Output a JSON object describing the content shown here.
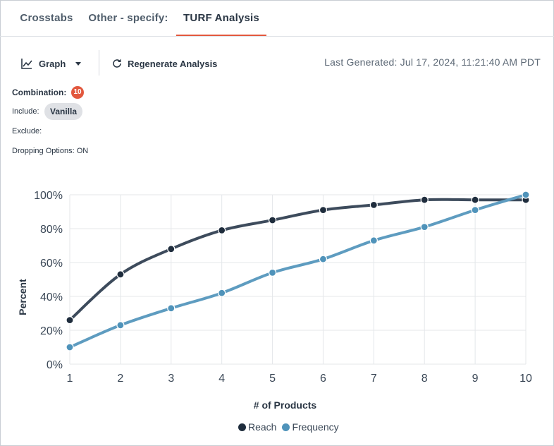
{
  "tabs": [
    {
      "label": "Crosstabs",
      "active": false
    },
    {
      "label": "Other - specify:",
      "active": false
    },
    {
      "label": "TURF Analysis",
      "active": true
    }
  ],
  "toolbar": {
    "view_label": "Graph",
    "view_icon": "line-chart-icon",
    "regenerate_label": "Regenerate Analysis",
    "regenerate_icon": "refresh-icon",
    "last_generated": "Last Generated: Jul 17, 2024, 11:21:40 AM PDT"
  },
  "info": {
    "combination_label": "Combination:",
    "combination_value": "10",
    "include_label": "Include:",
    "include_chips": [
      "Vanilla"
    ],
    "exclude_label": "Exclude:",
    "dropping_label": "Dropping Options: ON"
  },
  "colors": {
    "accent": "#e2583e",
    "reach": "#3d4b5c",
    "frequency": "#5e9cc0"
  },
  "chart_data": {
    "type": "line",
    "x": [
      1,
      2,
      3,
      4,
      5,
      6,
      7,
      8,
      9,
      10
    ],
    "series": [
      {
        "name": "Reach",
        "values": [
          26,
          53,
          68,
          79,
          85,
          91,
          94,
          97,
          97,
          97
        ]
      },
      {
        "name": "Frequency",
        "values": [
          10,
          23,
          33,
          42,
          54,
          62,
          73,
          81,
          91,
          100
        ]
      }
    ],
    "yticks": [
      "0%",
      "20%",
      "40%",
      "60%",
      "80%",
      "100%"
    ],
    "xlabel": "# of Products",
    "ylabel": "Percent",
    "xlim": [
      1,
      10
    ],
    "ylim": [
      0,
      100
    ],
    "grid": true,
    "legend": "bottom-center"
  }
}
